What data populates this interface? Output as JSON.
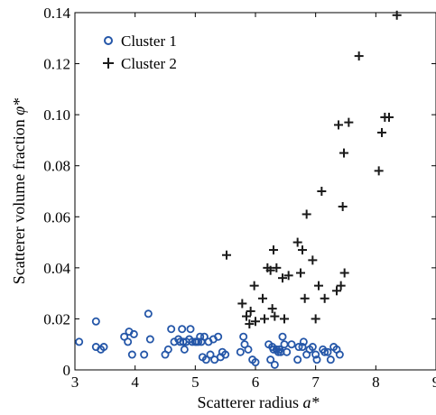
{
  "chart_data": {
    "type": "scatter",
    "title": "",
    "xlabel_main": "Scatterer radius ",
    "xlabel_symbol": "a*",
    "ylabel_main": "Scatterer volume fraction  ",
    "ylabel_symbol": "φ*",
    "xlim": [
      3,
      9
    ],
    "ylim": [
      0,
      0.14
    ],
    "xticks": [
      3,
      4,
      5,
      6,
      7,
      8,
      9
    ],
    "yticks": [
      0,
      0.02,
      0.04,
      0.06,
      0.08,
      0.1,
      0.12,
      0.14
    ],
    "xtick_labels": [
      "3",
      "4",
      "5",
      "6",
      "7",
      "8",
      "9"
    ],
    "ytick_labels": [
      "0",
      "0.02",
      "0.04",
      "0.06",
      "0.08",
      "0.10",
      "0.12",
      "0.14"
    ],
    "grid": false,
    "legend_position": "top-left",
    "series": [
      {
        "name": "Cluster 1",
        "marker": "circle-open",
        "color": "#2456a8",
        "points": [
          [
            3.07,
            0.011
          ],
          [
            3.35,
            0.019
          ],
          [
            3.35,
            0.009
          ],
          [
            3.43,
            0.008
          ],
          [
            3.48,
            0.009
          ],
          [
            3.82,
            0.013
          ],
          [
            3.88,
            0.011
          ],
          [
            3.9,
            0.015
          ],
          [
            3.95,
            0.006
          ],
          [
            3.98,
            0.014
          ],
          [
            4.15,
            0.006
          ],
          [
            4.22,
            0.022
          ],
          [
            4.25,
            0.012
          ],
          [
            4.5,
            0.006
          ],
          [
            4.55,
            0.008
          ],
          [
            4.6,
            0.016
          ],
          [
            4.65,
            0.011
          ],
          [
            4.72,
            0.012
          ],
          [
            4.75,
            0.011
          ],
          [
            4.78,
            0.016
          ],
          [
            4.8,
            0.011
          ],
          [
            4.82,
            0.008
          ],
          [
            4.85,
            0.011
          ],
          [
            4.9,
            0.012
          ],
          [
            4.92,
            0.016
          ],
          [
            4.95,
            0.011
          ],
          [
            5.0,
            0.011
          ],
          [
            5.02,
            0.011
          ],
          [
            5.05,
            0.011
          ],
          [
            5.08,
            0.013
          ],
          [
            5.1,
            0.011
          ],
          [
            5.12,
            0.005
          ],
          [
            5.15,
            0.013
          ],
          [
            5.18,
            0.004
          ],
          [
            5.22,
            0.011
          ],
          [
            5.25,
            0.006
          ],
          [
            5.3,
            0.012
          ],
          [
            5.32,
            0.004
          ],
          [
            5.38,
            0.013
          ],
          [
            5.42,
            0.005
          ],
          [
            5.45,
            0.007
          ],
          [
            5.5,
            0.006
          ],
          [
            5.75,
            0.007
          ],
          [
            5.8,
            0.013
          ],
          [
            5.82,
            0.01
          ],
          [
            5.88,
            0.008
          ],
          [
            5.95,
            0.004
          ],
          [
            6.0,
            0.003
          ],
          [
            6.22,
            0.01
          ],
          [
            6.25,
            0.004
          ],
          [
            6.28,
            0.009
          ],
          [
            6.3,
            0.008
          ],
          [
            6.32,
            0.002
          ],
          [
            6.35,
            0.008
          ],
          [
            6.38,
            0.007
          ],
          [
            6.4,
            0.008
          ],
          [
            6.42,
            0.007
          ],
          [
            6.45,
            0.013
          ],
          [
            6.48,
            0.01
          ],
          [
            6.52,
            0.007
          ],
          [
            6.6,
            0.01
          ],
          [
            6.7,
            0.004
          ],
          [
            6.72,
            0.009
          ],
          [
            6.78,
            0.009
          ],
          [
            6.8,
            0.011
          ],
          [
            6.85,
            0.006
          ],
          [
            6.9,
            0.008
          ],
          [
            6.95,
            0.009
          ],
          [
            7.0,
            0.006
          ],
          [
            7.02,
            0.004
          ],
          [
            7.12,
            0.008
          ],
          [
            7.15,
            0.007
          ],
          [
            7.2,
            0.007
          ],
          [
            7.25,
            0.004
          ],
          [
            7.3,
            0.009
          ],
          [
            7.35,
            0.008
          ],
          [
            7.4,
            0.006
          ]
        ]
      },
      {
        "name": "Cluster 2",
        "marker": "plus",
        "color": "#1a1a1a",
        "points": [
          [
            5.52,
            0.045
          ],
          [
            5.78,
            0.026
          ],
          [
            5.85,
            0.021
          ],
          [
            5.9,
            0.018
          ],
          [
            5.92,
            0.023
          ],
          [
            5.98,
            0.033
          ],
          [
            6.0,
            0.019
          ],
          [
            6.12,
            0.028
          ],
          [
            6.15,
            0.02
          ],
          [
            6.2,
            0.04
          ],
          [
            6.25,
            0.039
          ],
          [
            6.28,
            0.024
          ],
          [
            6.3,
            0.047
          ],
          [
            6.32,
            0.021
          ],
          [
            6.35,
            0.04
          ],
          [
            6.45,
            0.036
          ],
          [
            6.48,
            0.02
          ],
          [
            6.55,
            0.037
          ],
          [
            6.7,
            0.05
          ],
          [
            6.75,
            0.038
          ],
          [
            6.78,
            0.047
          ],
          [
            6.82,
            0.028
          ],
          [
            6.85,
            0.061
          ],
          [
            6.95,
            0.043
          ],
          [
            7.0,
            0.02
          ],
          [
            7.05,
            0.033
          ],
          [
            7.1,
            0.07
          ],
          [
            7.15,
            0.028
          ],
          [
            7.35,
            0.031
          ],
          [
            7.38,
            0.096
          ],
          [
            7.42,
            0.033
          ],
          [
            7.45,
            0.064
          ],
          [
            7.47,
            0.085
          ],
          [
            7.48,
            0.038
          ],
          [
            7.55,
            0.097
          ],
          [
            7.72,
            0.123
          ],
          [
            8.05,
            0.078
          ],
          [
            8.1,
            0.093
          ],
          [
            8.15,
            0.099
          ],
          [
            8.22,
            0.099
          ],
          [
            8.35,
            0.139
          ]
        ]
      }
    ]
  }
}
